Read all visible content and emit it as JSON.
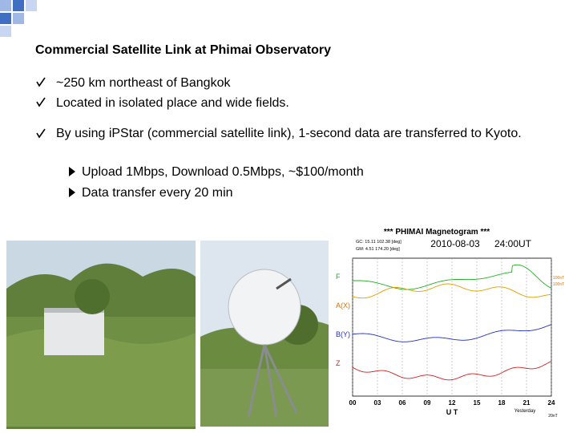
{
  "title": "Commercial Satellite Link at Phimai Observatory",
  "bullets": [
    "~250 km northeast of Bangkok",
    "Located in isolated place and wide fields.",
    "By using iPStar (commercial satellite link), 1-second data are transferred to Kyoto."
  ],
  "sub_bullets": [
    "Upload 1Mbps, Download 0.5Mbps, ~$100/month",
    "Data transfer every 20 min"
  ],
  "magnetogram": {
    "title": "*** PHIMAI Magnetogram ***",
    "date": "2010-08-03",
    "time": "24:00UT",
    "coords": [
      "GC: 15.11  102.38 [deg]",
      "GM: 4.51  174.20 [deg]"
    ],
    "channels": [
      "F",
      "A(X)",
      "B(Y)",
      "Z"
    ],
    "scale_labels": [
      "100nT",
      "100nT",
      "20nT"
    ],
    "x_ticks": [
      "00",
      "03",
      "06",
      "09",
      "12",
      "15",
      "18",
      "21",
      "24"
    ],
    "x_label": "U T",
    "note": "Yesterday"
  }
}
